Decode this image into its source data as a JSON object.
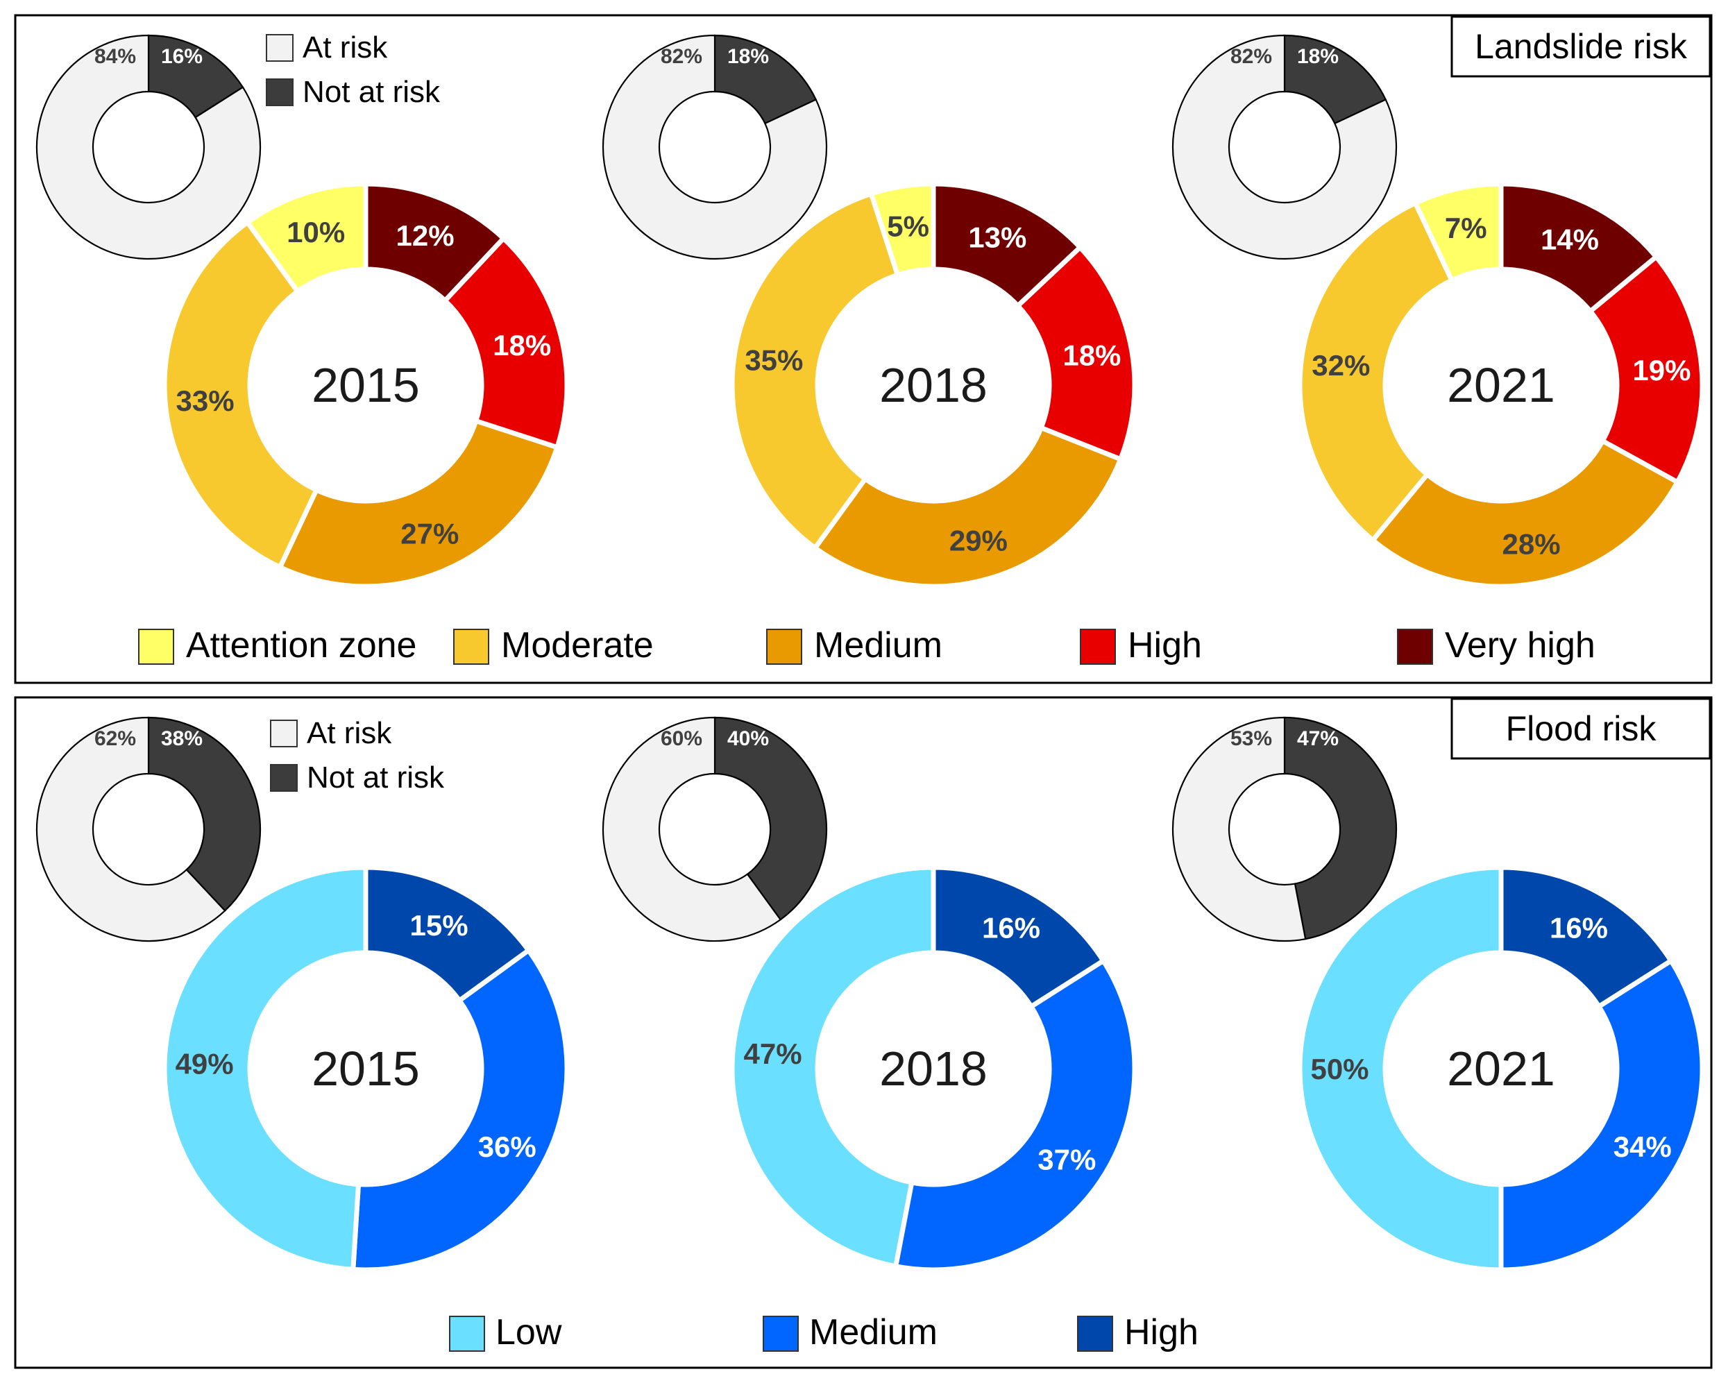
{
  "chart_data": [
    {
      "type": "pie",
      "panel": "Landslide risk",
      "title": "Landslide risk",
      "categories": [
        "Attention zone",
        "Moderate",
        "Medium",
        "High",
        "Very high"
      ],
      "colors": [
        "#ffff66",
        "#f7c92f",
        "#e89a00",
        "#e80000",
        "#6e0000"
      ],
      "label_colors": [
        "#404040",
        "#404040",
        "#404040",
        "#ffffff",
        "#ffffff"
      ],
      "overview_categories": [
        "At risk",
        "Not at risk"
      ],
      "overview_colors": [
        "#f2f2f2",
        "#3c3c3c"
      ],
      "years": [
        {
          "year": "2015",
          "values": [
            10,
            33,
            27,
            18,
            12
          ],
          "labels": [
            "10%",
            "33%",
            "27%",
            "18%",
            "12%"
          ],
          "overview": [
            84,
            16
          ],
          "overview_labels": [
            "84%",
            "16%"
          ]
        },
        {
          "year": "2018",
          "values": [
            5,
            35,
            29,
            18,
            13
          ],
          "labels": [
            "5%",
            "35%",
            "29%",
            "18%",
            "13%"
          ],
          "overview": [
            82,
            18
          ],
          "overview_labels": [
            "82%",
            "18%"
          ]
        },
        {
          "year": "2021",
          "values": [
            7,
            32,
            28,
            19,
            14
          ],
          "labels": [
            "7%",
            "32%",
            "28%",
            "19%",
            "14%"
          ],
          "overview": [
            82,
            18
          ],
          "overview_labels": [
            "82%",
            "18%"
          ]
        }
      ]
    },
    {
      "type": "pie",
      "panel": "Flood risk",
      "title": "Flood risk",
      "categories": [
        "Low",
        "Medium",
        "High"
      ],
      "colors": [
        "#6bdfff",
        "#0066ff",
        "#0047ab"
      ],
      "label_colors": [
        "#404040",
        "#ffffff",
        "#ffffff"
      ],
      "overview_categories": [
        "At risk",
        "Not at risk"
      ],
      "overview_colors": [
        "#f2f2f2",
        "#3c3c3c"
      ],
      "years": [
        {
          "year": "2015",
          "values": [
            49,
            36,
            15
          ],
          "labels": [
            "49%",
            "36%",
            "15%"
          ],
          "overview": [
            62,
            38
          ],
          "overview_labels": [
            "62%",
            "38%"
          ]
        },
        {
          "year": "2018",
          "values": [
            47,
            37,
            16
          ],
          "labels": [
            "47%",
            "37%",
            "16%"
          ],
          "overview": [
            60,
            40
          ],
          "overview_labels": [
            "60%",
            "40%"
          ]
        },
        {
          "year": "2021",
          "values": [
            50,
            34,
            16
          ],
          "labels": [
            "50%",
            "34%",
            "16%"
          ],
          "overview": [
            53,
            47
          ],
          "overview_labels": [
            "53%",
            "47%"
          ]
        }
      ]
    }
  ]
}
